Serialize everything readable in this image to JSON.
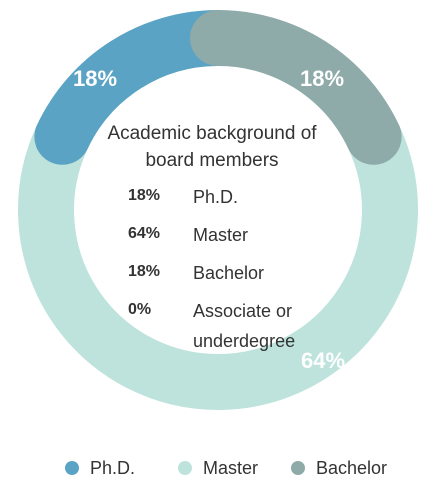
{
  "chart_data": {
    "type": "donut",
    "title": "Academic background of board members",
    "categories": [
      "Ph.D.",
      "Master",
      "Bachelor",
      "Associate or underdegree"
    ],
    "values": [
      18,
      64,
      18,
      0
    ],
    "value_labels": [
      "18%",
      "64%",
      "18%",
      "0%"
    ],
    "colors": [
      "#5ba3c4",
      "#bde3dc",
      "#8eaaa9",
      null
    ],
    "legend": "bottom"
  }
}
